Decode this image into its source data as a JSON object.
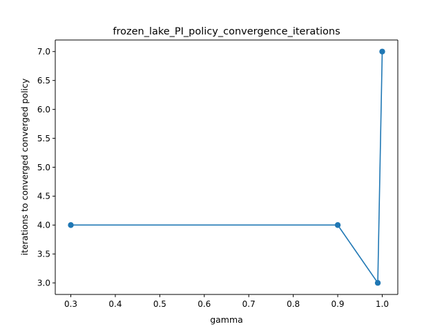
{
  "chart_data": {
    "type": "line",
    "title": "frozen_lake_PI_policy_convergence_iterations",
    "xlabel": "gamma",
    "ylabel": "iterations to converged converged policy",
    "x": [
      0.3,
      0.9,
      0.99,
      1.0
    ],
    "series": [
      {
        "values": [
          4,
          4,
          3,
          7
        ],
        "color": "#1f77b4",
        "marker": "circle"
      }
    ],
    "xlim": [
      0.265,
      1.035
    ],
    "ylim": [
      2.8,
      7.2
    ],
    "xticks": [
      0.3,
      0.4,
      0.5,
      0.6,
      0.7,
      0.8,
      0.9,
      1.0
    ],
    "xtick_labels": [
      "0.3",
      "0.4",
      "0.5",
      "0.6",
      "0.7",
      "0.8",
      "0.9",
      "1.0"
    ],
    "yticks": [
      3.0,
      3.5,
      4.0,
      4.5,
      5.0,
      5.5,
      6.0,
      6.5,
      7.0
    ],
    "ytick_labels": [
      "3.0",
      "3.5",
      "4.0",
      "4.5",
      "5.0",
      "5.5",
      "6.0",
      "6.5",
      "7.0"
    ],
    "grid": false,
    "legend": "none"
  }
}
